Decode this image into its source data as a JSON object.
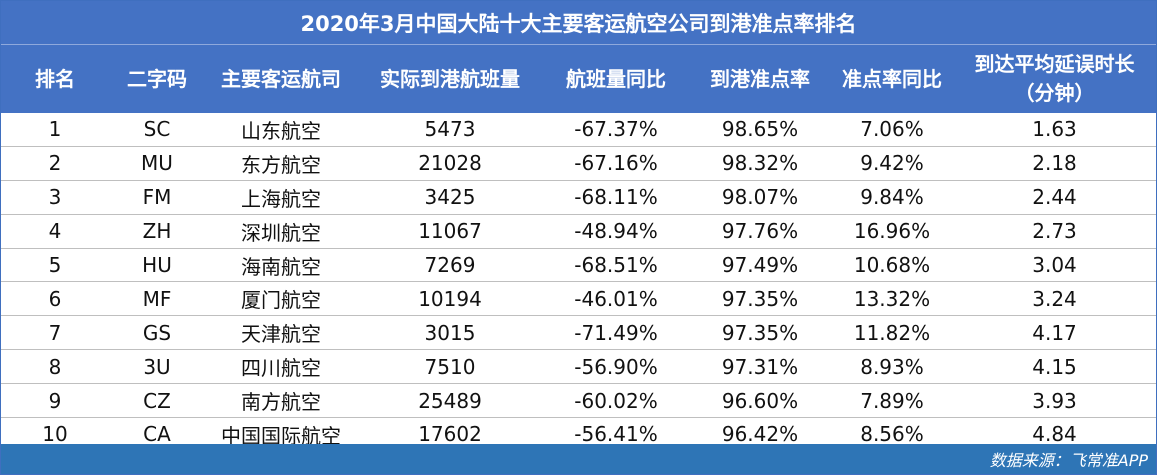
{
  "title": "2020年3月中国大陆十大主要客运航空公司到港准点率排名",
  "headers": [
    "排名",
    "二字码",
    "主要客运航司",
    "实际到港航班量",
    "航班量同比",
    "到港准点率",
    "准点率同比",
    "到达平均延误时长",
    "（分钟）"
  ],
  "rows": [
    {
      "rank": "1",
      "code": "SC",
      "airline": "山东航空",
      "flights": "5473",
      "flights_yoy": "-67.37%",
      "ontime": "98.65%",
      "ontime_yoy": "7.06%",
      "delay": "1.63"
    },
    {
      "rank": "2",
      "code": "MU",
      "airline": "东方航空",
      "flights": "21028",
      "flights_yoy": "-67.16%",
      "ontime": "98.32%",
      "ontime_yoy": "9.42%",
      "delay": "2.18"
    },
    {
      "rank": "3",
      "code": "FM",
      "airline": "上海航空",
      "flights": "3425",
      "flights_yoy": "-68.11%",
      "ontime": "98.07%",
      "ontime_yoy": "9.84%",
      "delay": "2.44"
    },
    {
      "rank": "4",
      "code": "ZH",
      "airline": "深圳航空",
      "flights": "11067",
      "flights_yoy": "-48.94%",
      "ontime": "97.76%",
      "ontime_yoy": "16.96%",
      "delay": "2.73"
    },
    {
      "rank": "5",
      "code": "HU",
      "airline": "海南航空",
      "flights": "7269",
      "flights_yoy": "-68.51%",
      "ontime": "97.49%",
      "ontime_yoy": "10.68%",
      "delay": "3.04"
    },
    {
      "rank": "6",
      "code": "MF",
      "airline": "厦门航空",
      "flights": "10194",
      "flights_yoy": "-46.01%",
      "ontime": "97.35%",
      "ontime_yoy": "13.32%",
      "delay": "3.24"
    },
    {
      "rank": "7",
      "code": "GS",
      "airline": "天津航空",
      "flights": "3015",
      "flights_yoy": "-71.49%",
      "ontime": "97.35%",
      "ontime_yoy": "11.82%",
      "delay": "4.17"
    },
    {
      "rank": "8",
      "code": "3U",
      "airline": "四川航空",
      "flights": "7510",
      "flights_yoy": "-56.90%",
      "ontime": "97.31%",
      "ontime_yoy": "8.93%",
      "delay": "4.15"
    },
    {
      "rank": "9",
      "code": "CZ",
      "airline": "南方航空",
      "flights": "25489",
      "flights_yoy": "-60.02%",
      "ontime": "96.60%",
      "ontime_yoy": "7.89%",
      "delay": "3.93"
    },
    {
      "rank": "10",
      "code": "CA",
      "airline": "中国国际航空",
      "flights": "17602",
      "flights_yoy": "-56.41%",
      "ontime": "96.42%",
      "ontime_yoy": "8.56%",
      "delay": "4.84"
    }
  ],
  "footer": "数据来源：飞常准APP",
  "colors": {
    "header_bg": "#4472c4",
    "footer_bg": "#2e75b6",
    "text": "#111111"
  }
}
